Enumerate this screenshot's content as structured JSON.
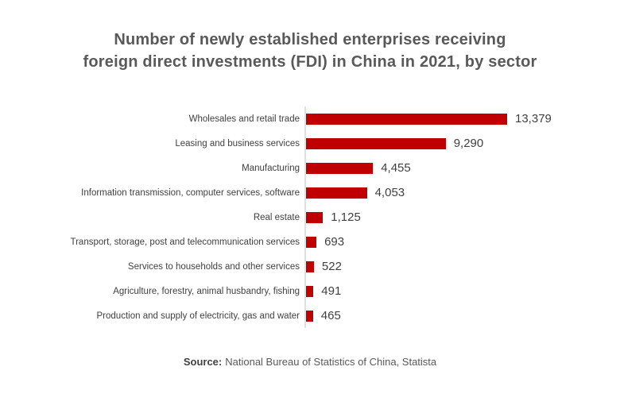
{
  "header": {
    "title_line1": "Number of newly established enterprises receiving",
    "title_line2": "foreign direct investments (FDI) in China in 2021, by sector"
  },
  "footer": {
    "source_label": "Source:",
    "source_text": "National Bureau of Statistics of China, Statista"
  },
  "colors": {
    "bar": "#c00000",
    "title_text": "#595959",
    "label_text": "#404040",
    "axis_line": "#e2e2e2",
    "background": "#ffffff"
  },
  "chart_data": {
    "type": "bar",
    "orientation": "horizontal",
    "title": "Number of newly established enterprises receiving foreign direct investments (FDI) in China in 2021, by sector",
    "categories": [
      "Wholesales and retail trade",
      "Leasing and business services",
      "Manufacturing",
      "Information transmission, computer services, software",
      "Real estate",
      "Transport, storage, post and telecommunication services",
      "Services to households and other services",
      "Agriculture, forestry, animal husbandry, fishing",
      "Production and supply of electricity, gas and water"
    ],
    "values": [
      13379,
      9290,
      4455,
      4053,
      1125,
      693,
      522,
      491,
      465
    ],
    "value_labels": [
      "13,379",
      "9,290",
      "4,455",
      "4,053",
      "1,125",
      "693",
      "522",
      "491",
      "465"
    ],
    "xlabel": "",
    "ylabel": "",
    "xlim": [
      0,
      13379
    ],
    "grid": false,
    "legend": false,
    "bar_color": "#c00000",
    "value_label_position": "outside-end"
  }
}
